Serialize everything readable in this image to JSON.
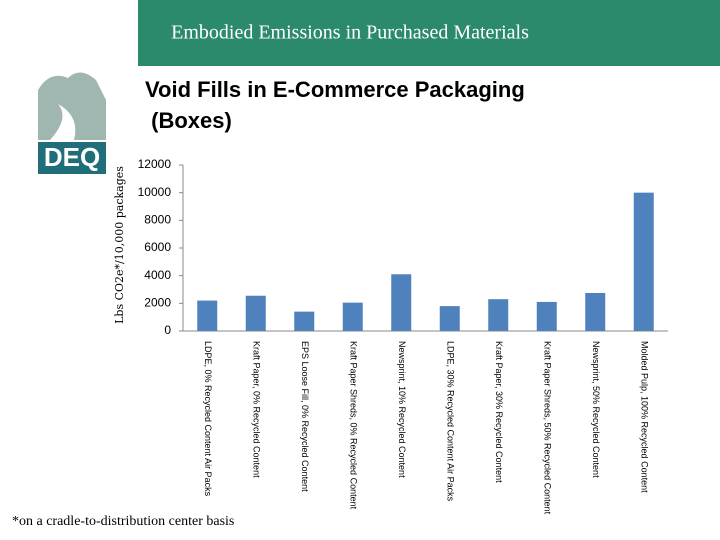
{
  "header": {
    "title": "Embodied Emissions in Purchased Materials",
    "logo_text": "DEQ"
  },
  "chart_data": {
    "type": "bar",
    "title": "Void Fills in E-Commerce Packaging (Boxes)",
    "y_label": "Lbs CO2e*/10,000 packages",
    "categories": [
      "LDPE, 0% Recycled Content Air Packs",
      "Kraft Paper, 0% Recycled Content",
      "EPS Loose Fill, 0% Recycled Content",
      "Kraft Paper Shreds, 0% Recycled Content",
      "Newsprint, 10% Recycled Content",
      "LDPE, 30% Recycled Content Air Packs",
      "Kraft Paper, 30% Recycled Content",
      "Kraft Paper Shreds, 50% Recycled Content",
      "Newsprint, 50% Recycled Content",
      "Molded Pulp, 100% Recycled Content"
    ],
    "values": [
      2200,
      2550,
      1400,
      2050,
      4100,
      1800,
      2300,
      2100,
      2750,
      10000
    ],
    "color": "#4f81bd",
    "ylim": [
      0,
      12000
    ],
    "yticks": [
      0,
      2000,
      4000,
      6000,
      8000,
      10000,
      12000
    ],
    "grid": false,
    "footnote": "*on a cradle-to-distribution center basis"
  }
}
